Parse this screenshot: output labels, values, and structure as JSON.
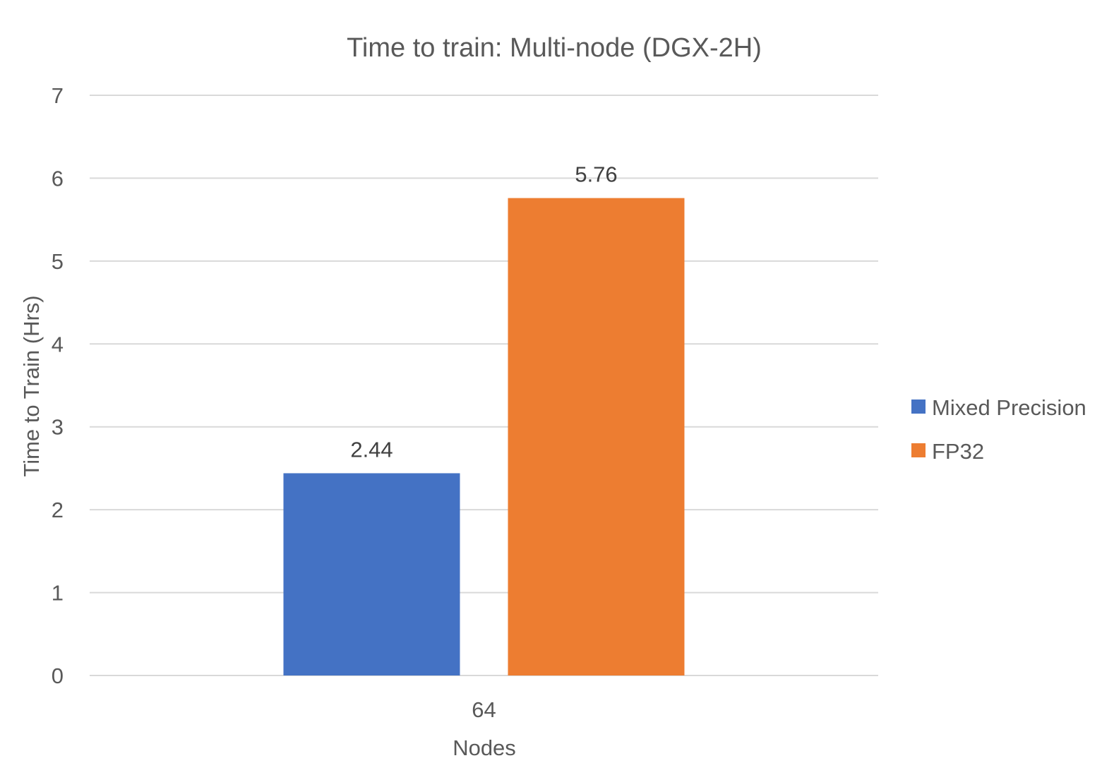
{
  "chart_data": {
    "type": "bar",
    "title": "Time to train: Multi-node (DGX-2H)",
    "xlabel": "Nodes",
    "ylabel": "Time to Train (Hrs)",
    "categories": [
      "64"
    ],
    "ylim": [
      0,
      7
    ],
    "yticks": [
      0,
      1,
      2,
      3,
      4,
      5,
      6,
      7
    ],
    "grid": true,
    "legend_position": "right",
    "series": [
      {
        "name": "Mixed Precision",
        "values": [
          2.44
        ],
        "color": "#4472C4",
        "value_labels": [
          "2.44"
        ]
      },
      {
        "name": "FP32",
        "values": [
          5.76
        ],
        "color": "#ED7D31",
        "value_labels": [
          "5.76"
        ]
      }
    ]
  }
}
